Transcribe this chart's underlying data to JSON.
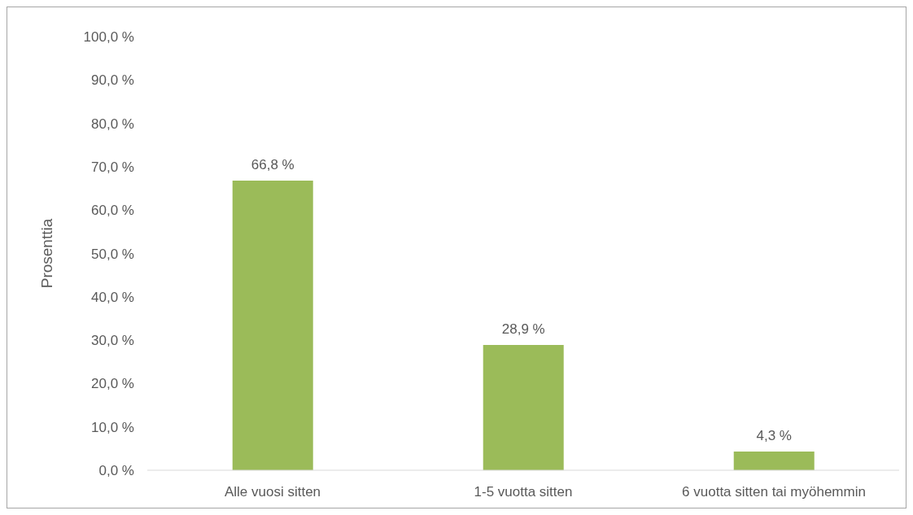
{
  "chart_data": {
    "type": "bar",
    "ylabel": "Prosenttia",
    "categories": [
      "Alle vuosi sitten",
      "1-5 vuotta sitten",
      "6 vuotta sitten tai myöhemmin"
    ],
    "values": [
      66.8,
      28.9,
      4.3
    ],
    "value_labels": [
      "66,8 %",
      "28,9 %",
      "4,3 %"
    ],
    "color": "#9bbb59",
    "ylim": [
      0,
      100
    ],
    "yticks": [
      {
        "value": 0,
        "label": "0,0 %"
      },
      {
        "value": 10,
        "label": "10,0 %"
      },
      {
        "value": 20,
        "label": "20,0 %"
      },
      {
        "value": 30,
        "label": "30,0 %"
      },
      {
        "value": 40,
        "label": "40,0 %"
      },
      {
        "value": 50,
        "label": "50,0 %"
      },
      {
        "value": 60,
        "label": "60,0 %"
      },
      {
        "value": 70,
        "label": "70,0 %"
      },
      {
        "value": 80,
        "label": "80,0 %"
      },
      {
        "value": 90,
        "label": "90,0 %"
      },
      {
        "value": 100,
        "label": "100,0 %"
      }
    ],
    "grid": false,
    "legend": false
  }
}
